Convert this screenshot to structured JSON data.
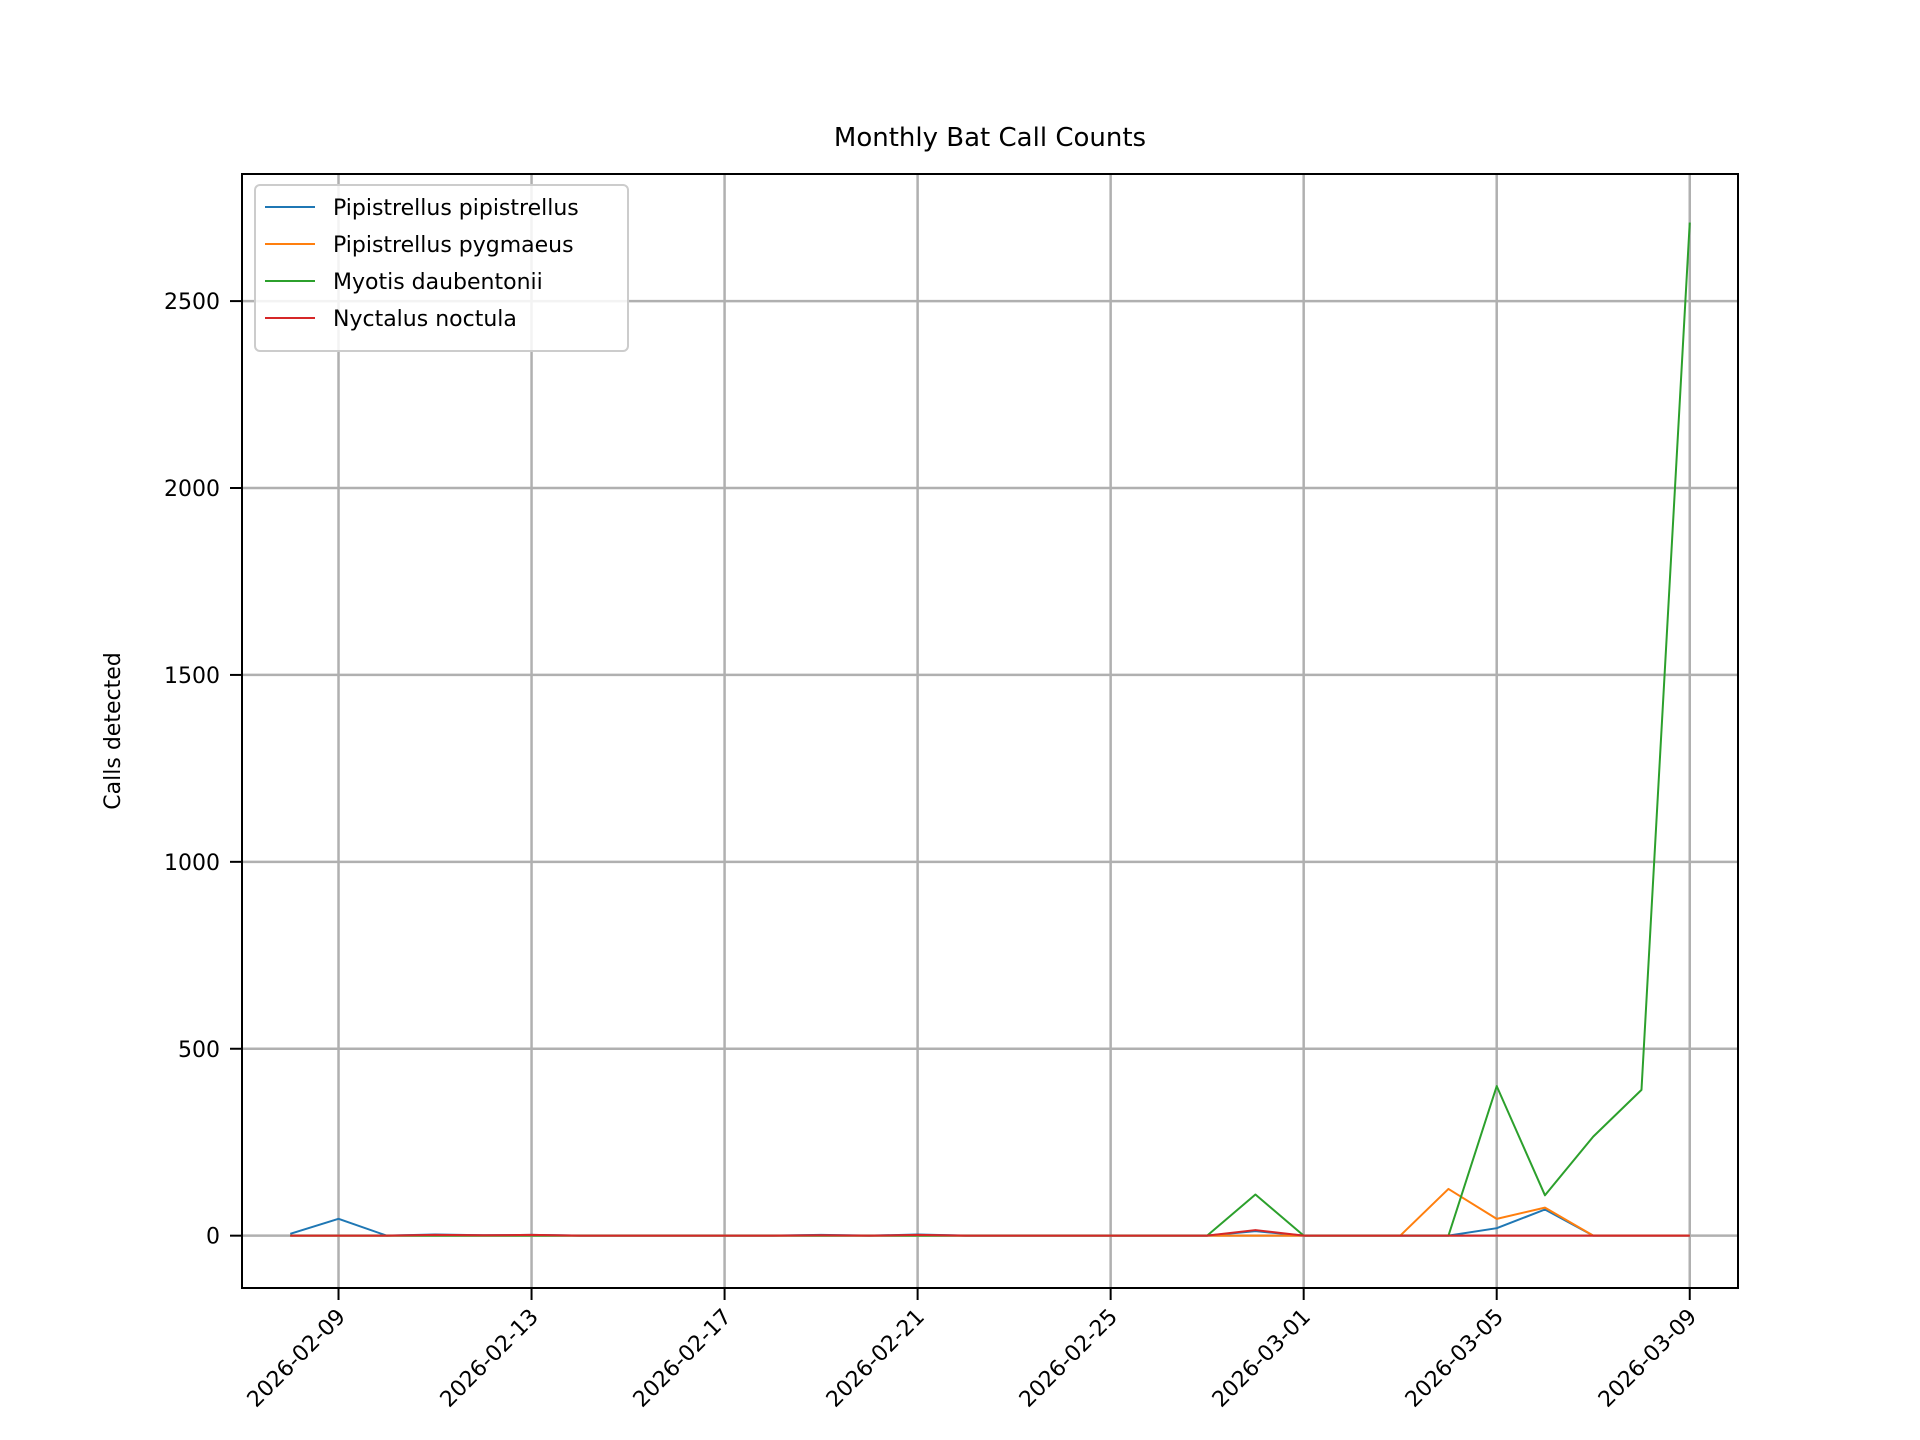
{
  "chart_data": {
    "type": "line",
    "title": "Monthly Bat Call Counts",
    "xlabel": "",
    "ylabel": "Calls detected",
    "grid": true,
    "legend_position": "top-left",
    "x": [
      "2026-02-08",
      "2026-02-09",
      "2026-02-10",
      "2026-02-11",
      "2026-02-12",
      "2026-02-13",
      "2026-02-14",
      "2026-02-15",
      "2026-02-16",
      "2026-02-17",
      "2026-02-18",
      "2026-02-19",
      "2026-02-20",
      "2026-02-21",
      "2026-02-22",
      "2026-02-23",
      "2026-02-24",
      "2026-02-25",
      "2026-02-26",
      "2026-02-27",
      "2026-02-28",
      "2026-03-01",
      "2026-03-02",
      "2026-03-03",
      "2026-03-04",
      "2026-03-05",
      "2026-03-06",
      "2026-03-07",
      "2026-03-08",
      "2026-03-09"
    ],
    "xlim": [
      "2026-02-07",
      "2026-03-10"
    ],
    "x_ticks": [
      "2026-02-09",
      "2026-02-13",
      "2026-02-17",
      "2026-02-21",
      "2026-02-25",
      "2026-03-01",
      "2026-03-05",
      "2026-03-09"
    ],
    "ylim": [
      -140,
      2840
    ],
    "y_ticks": [
      0,
      500,
      1000,
      1500,
      2000,
      2500
    ],
    "series": [
      {
        "name": "Pipistrellus pipistrellus",
        "color": "#1f77b4",
        "values": [
          5,
          45,
          0,
          3,
          1,
          2,
          0,
          0,
          0,
          0,
          0,
          2,
          0,
          3,
          0,
          0,
          0,
          0,
          0,
          0,
          12,
          0,
          0,
          0,
          0,
          20,
          70,
          0,
          0,
          0
        ]
      },
      {
        "name": "Pipistrellus pygmaeus",
        "color": "#ff7f0e",
        "values": [
          0,
          0,
          0,
          0,
          0,
          0,
          0,
          0,
          0,
          0,
          0,
          0,
          0,
          0,
          0,
          0,
          0,
          0,
          0,
          0,
          0,
          0,
          0,
          0,
          125,
          45,
          75,
          0,
          0,
          0
        ]
      },
      {
        "name": "Myotis daubentonii",
        "color": "#2ca02c",
        "values": [
          0,
          0,
          0,
          0,
          0,
          0,
          0,
          0,
          0,
          0,
          0,
          0,
          0,
          0,
          0,
          0,
          0,
          0,
          0,
          0,
          110,
          0,
          0,
          0,
          0,
          400,
          108,
          265,
          390,
          2710
        ]
      },
      {
        "name": "Nyctalus noctula",
        "color": "#d62728",
        "values": [
          0,
          0,
          0,
          2,
          1,
          2,
          0,
          0,
          0,
          0,
          0,
          1,
          0,
          2,
          0,
          0,
          0,
          0,
          0,
          0,
          15,
          0,
          0,
          0,
          0,
          0,
          0,
          0,
          0,
          0
        ]
      }
    ]
  }
}
